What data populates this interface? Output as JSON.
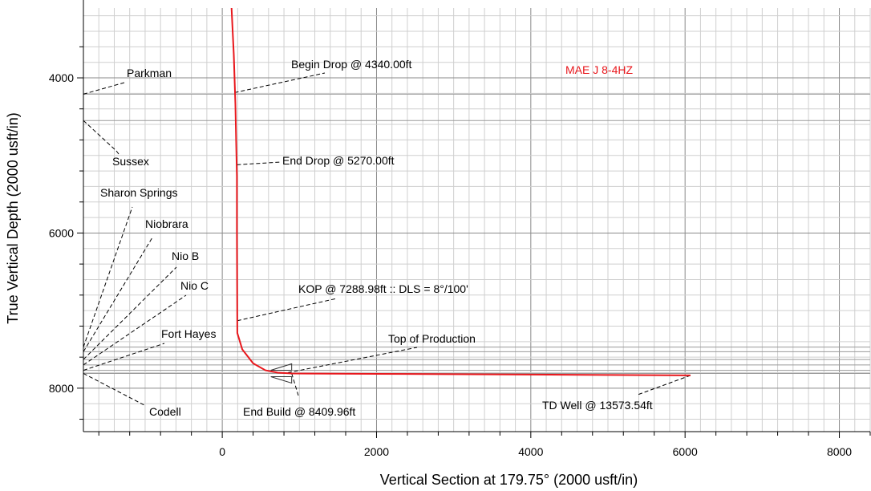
{
  "chart_data": {
    "type": "line",
    "xlabel": "Vertical Section at 179.75° (2000 usft/in)",
    "ylabel": "True Vertical Depth (2000 usft/in)",
    "xlim": [
      -1800,
      8400
    ],
    "ylim": [
      3100,
      8560
    ],
    "y_inverted": true,
    "grid": true,
    "x_ticks": [
      0,
      2000,
      4000,
      6000,
      8000
    ],
    "y_ticks": [
      4000,
      6000,
      8000
    ],
    "well_label": "MAE J 8-4HZ",
    "well_color": "#e8171c",
    "series": [
      {
        "name": "MAE J 8-4HZ",
        "x": [
          120,
          150,
          170,
          180,
          190,
          190,
          195,
          260,
          400,
          560,
          720,
          900,
          2000,
          4000,
          5000,
          6070
        ],
        "y": [
          3100,
          3700,
          4340,
          4800,
          5270,
          6000,
          7289,
          7500,
          7680,
          7770,
          7800,
          7810,
          7815,
          7825,
          7830,
          7835
        ]
      }
    ],
    "formations": [
      {
        "name": "Parkman",
        "tvd": 4210
      },
      {
        "name": "Sussex",
        "tvd": 4550
      },
      {
        "name": "Sharon Springs",
        "tvd": 7470
      },
      {
        "name": "Niobrara",
        "tvd": 7530
      },
      {
        "name": "Nio B",
        "tvd": 7630
      },
      {
        "name": "Nio C",
        "tvd": 7700
      },
      {
        "name": "Fort Hayes",
        "tvd": 7770
      },
      {
        "name": "Codell",
        "tvd": 7810
      }
    ],
    "annotations": [
      {
        "label": "Begin Drop @ 4340.00ft",
        "x": 160,
        "y": 4190
      },
      {
        "label": "End Drop @ 5270.00ft",
        "x": 190,
        "y": 5120
      },
      {
        "label": "KOP @ 7288.98ft :: DLS = 8°/100'",
        "x": 195,
        "y": 7130
      },
      {
        "label": "Top of Production",
        "x": 850,
        "y": 7800
      },
      {
        "label": "End Build @ 8409.96ft",
        "x": 900,
        "y": 7810
      },
      {
        "label": "TD Well @ 13573.54ft",
        "x": 6070,
        "y": 7835
      }
    ]
  }
}
